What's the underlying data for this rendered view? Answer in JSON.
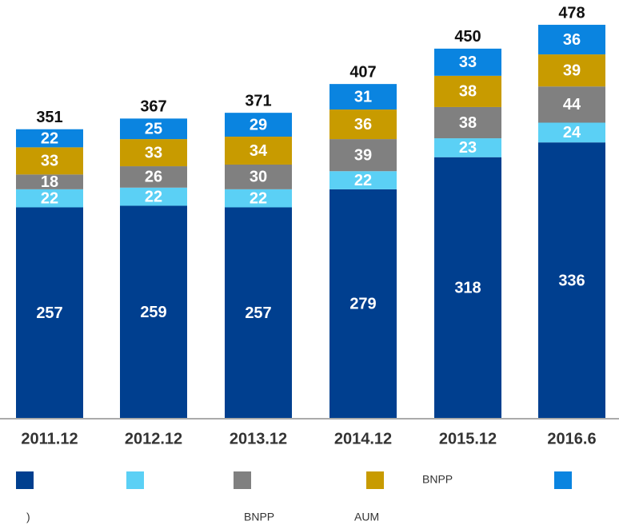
{
  "chart_data": {
    "type": "stacked_bar",
    "categories": [
      "2011.12",
      "2012.12",
      "2013.12",
      "2014.12",
      "2015.12",
      "2016.6"
    ],
    "series": [
      {
        "color": "#003f8f",
        "values": [
          257,
          259,
          257,
          279,
          318,
          336
        ]
      },
      {
        "color": "#5bd0f5",
        "values": [
          22,
          22,
          22,
          22,
          23,
          24
        ]
      },
      {
        "color": "#808080",
        "values": [
          18,
          26,
          30,
          39,
          38,
          44
        ]
      },
      {
        "name": "BNPP",
        "color": "#c89b00",
        "values": [
          33,
          33,
          34,
          36,
          38,
          39
        ]
      },
      {
        "color": "#0a84e0",
        "values": [
          22,
          25,
          29,
          31,
          33,
          36
        ]
      }
    ],
    "totals": [
      351,
      367,
      371,
      407,
      450,
      478
    ],
    "ylim": [
      0,
      480
    ],
    "notes": [
      ")",
      "BNPP",
      "AUM"
    ]
  }
}
